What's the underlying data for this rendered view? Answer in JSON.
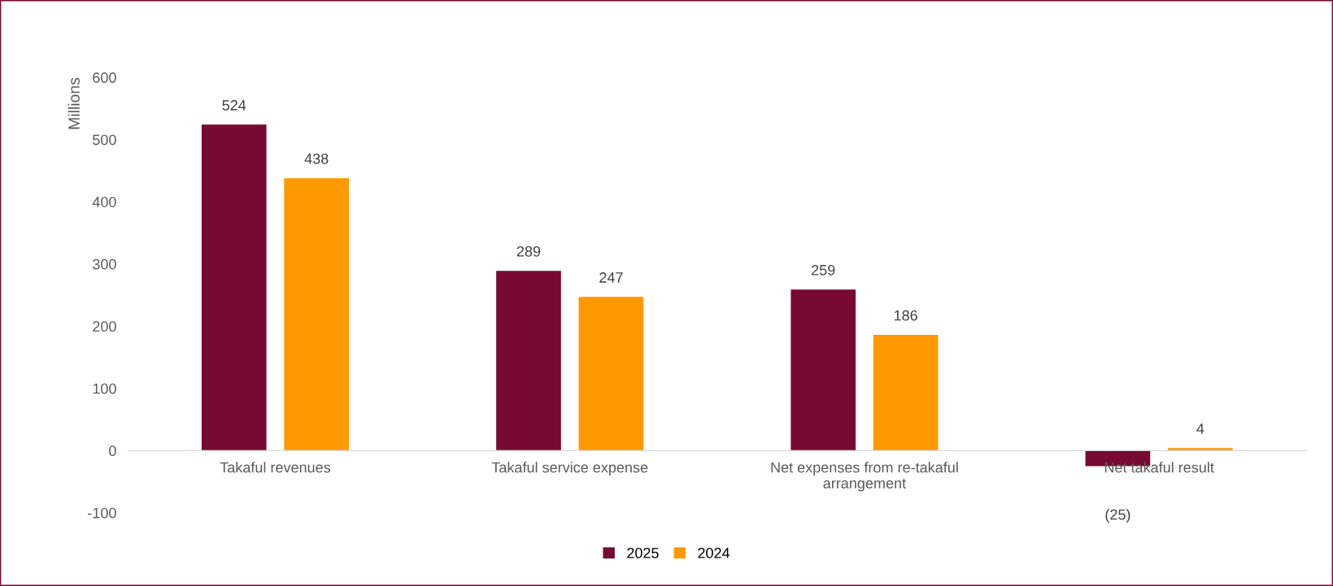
{
  "chart_data": {
    "type": "bar",
    "ylabel": "Millions",
    "categories": [
      "Takaful revenues",
      "Takaful service expense",
      "Net expenses from re-takaful\narrangement",
      "Net takaful result"
    ],
    "series": [
      {
        "name": "2025",
        "color": "#780a32",
        "values": [
          524,
          289,
          259,
          -25
        ],
        "value_labels": [
          "524",
          "289",
          "259",
          "(25)"
        ]
      },
      {
        "name": "2024",
        "color": "#ff9900",
        "values": [
          438,
          247,
          186,
          4
        ],
        "value_labels": [
          "438",
          "247",
          "186",
          "4"
        ]
      }
    ],
    "ylim": [
      -100,
      600
    ],
    "yticks": [
      -100,
      0,
      100,
      200,
      300,
      400,
      500,
      600
    ],
    "grid": false,
    "legend": "bottom"
  }
}
